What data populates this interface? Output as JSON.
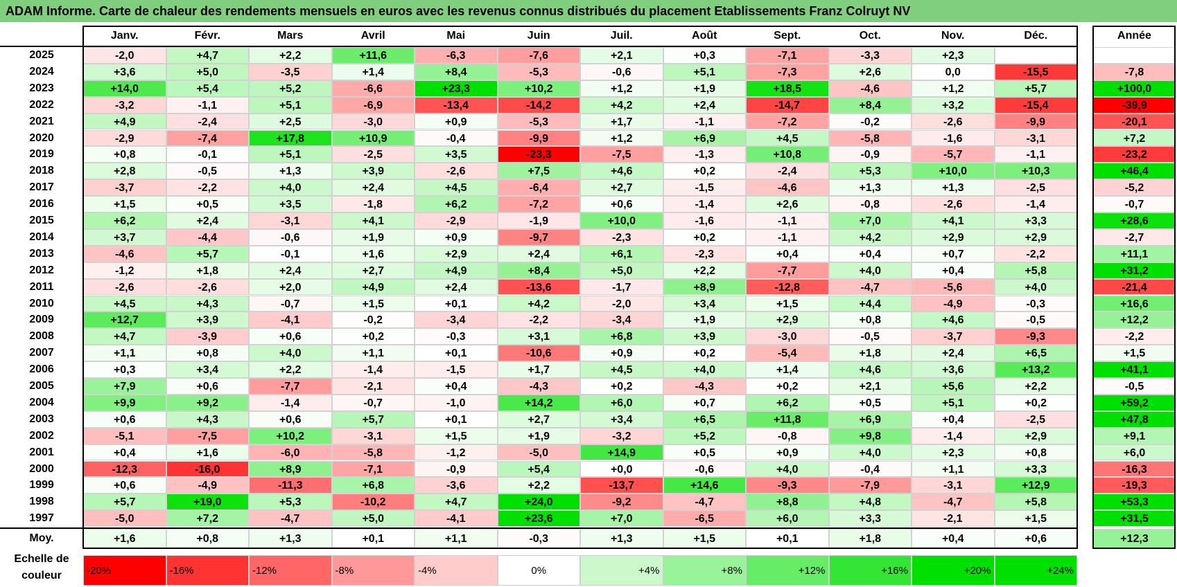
{
  "title": "ADAM Informe. Carte de chaleur des rendements mensuels en euros avec les revenus connus distribués du placement Etablissements Franz Colruyt NV",
  "colors": {
    "title_bg": "#7fcf7f",
    "neg_max": "#ff0000",
    "zero": "#ffffff",
    "pos_max": "#00e000"
  },
  "chart_data": {
    "type": "heatmap",
    "title": "ADAM Informe. Carte de chaleur des rendements mensuels en euros avec les revenus connus distribués du placement Etablissements Franz Colruyt NV",
    "columns": [
      "Janv.",
      "Févr.",
      "Mars",
      "Avril",
      "Mai",
      "Juin",
      "Juil.",
      "Août",
      "Sept.",
      "Oct.",
      "Nov.",
      "Déc."
    ],
    "year_header": "Année",
    "rows": [
      {
        "label": "2025",
        "values": [
          "-2,0",
          "+4,7",
          "+2,2",
          "+11,6",
          "-6,3",
          "-7,6",
          "+2,1",
          "+0,3",
          "-7,1",
          "-3,3",
          "+2,3",
          ""
        ],
        "year": ""
      },
      {
        "label": "2024",
        "values": [
          "+3,6",
          "+5,0",
          "-3,5",
          "+1,4",
          "+8,4",
          "-5,3",
          "-0,6",
          "+5,1",
          "-7,3",
          "+2,6",
          "0,0",
          "-15,5"
        ],
        "year": "-7,8"
      },
      {
        "label": "2023",
        "values": [
          "+14,0",
          "+5,4",
          "+5,2",
          "-6,6",
          "+23,3",
          "+10,2",
          "+1,2",
          "+1,9",
          "+18,5",
          "-4,6",
          "+1,2",
          "+5,7"
        ],
        "year": "+100,0"
      },
      {
        "label": "2022",
        "values": [
          "-3,2",
          "-1,1",
          "+5,1",
          "-6,9",
          "-13,4",
          "-14,2",
          "+4,2",
          "+2,4",
          "-14,7",
          "+8,4",
          "+3,2",
          "-15,4"
        ],
        "year": "-39,9"
      },
      {
        "label": "2021",
        "values": [
          "+4,9",
          "-2,4",
          "+2,5",
          "-3,0",
          "+0,9",
          "-5,3",
          "+1,7",
          "-1,1",
          "-7,2",
          "-0,2",
          "-2,6",
          "-9,9"
        ],
        "year": "-20,1"
      },
      {
        "label": "2020",
        "values": [
          "-2,9",
          "-7,4",
          "+17,8",
          "+10,9",
          "-0,4",
          "-9,9",
          "+1,2",
          "+6,9",
          "+4,5",
          "-5,8",
          "-1,6",
          "-3,1"
        ],
        "year": "+7,2"
      },
      {
        "label": "2019",
        "values": [
          "+0,8",
          "-0,1",
          "+5,1",
          "-2,5",
          "+3,5",
          "-23,3",
          "-7,5",
          "-1,3",
          "+10,8",
          "-0,9",
          "-5,7",
          "-1,1"
        ],
        "year": "-23,2"
      },
      {
        "label": "2018",
        "values": [
          "+2,8",
          "-0,5",
          "+1,3",
          "+3,9",
          "-2,6",
          "+7,5",
          "+4,6",
          "+0,2",
          "-2,4",
          "+5,3",
          "+10,0",
          "+10,3"
        ],
        "year": "+46,4"
      },
      {
        "label": "2017",
        "values": [
          "-3,7",
          "-2,2",
          "+4,0",
          "+2,4",
          "+4,5",
          "-6,4",
          "+2,7",
          "-1,5",
          "-4,6",
          "+1,3",
          "+1,3",
          "-2,5"
        ],
        "year": "-5,2"
      },
      {
        "label": "2016",
        "values": [
          "+1,5",
          "+0,5",
          "+3,5",
          "-1,8",
          "+6,2",
          "-7,2",
          "+0,6",
          "-1,4",
          "+2,6",
          "-0,8",
          "-2,6",
          "-1,4"
        ],
        "year": "-0,7"
      },
      {
        "label": "2015",
        "values": [
          "+6,2",
          "+2,4",
          "-3,1",
          "+4,1",
          "-2,9",
          "-1,9",
          "+10,0",
          "-1,6",
          "-1,1",
          "+7,0",
          "+4,1",
          "+3,3"
        ],
        "year": "+28,6"
      },
      {
        "label": "2014",
        "values": [
          "+3,7",
          "-4,4",
          "-0,6",
          "+1,9",
          "+0,9",
          "-9,7",
          "-2,3",
          "+0,2",
          "-1,1",
          "+4,2",
          "+2,9",
          "+2,9"
        ],
        "year": "-2,7"
      },
      {
        "label": "2013",
        "values": [
          "-4,6",
          "+5,7",
          "-0,1",
          "+1,6",
          "+2,9",
          "+2,4",
          "+6,1",
          "-2,3",
          "+0,4",
          "+0,4",
          "+0,7",
          "-2,2"
        ],
        "year": "+11,1"
      },
      {
        "label": "2012",
        "values": [
          "-1,2",
          "+1,8",
          "+2,4",
          "+2,7",
          "+4,9",
          "+8,4",
          "+5,0",
          "+2,2",
          "-7,7",
          "+4,0",
          "+0,4",
          "+5,8"
        ],
        "year": "+31,2"
      },
      {
        "label": "2011",
        "values": [
          "-2,6",
          "-2,6",
          "+2,0",
          "+4,9",
          "+2,4",
          "-13,6",
          "-1,7",
          "+8,9",
          "-12,8",
          "-4,7",
          "-5,6",
          "+4,0"
        ],
        "year": "-21,4"
      },
      {
        "label": "2010",
        "values": [
          "+4,5",
          "+4,3",
          "-0,7",
          "+1,5",
          "+0,1",
          "+4,2",
          "-2,0",
          "+3,4",
          "+1,5",
          "+4,4",
          "-4,9",
          "-0,3"
        ],
        "year": "+16,6"
      },
      {
        "label": "2009",
        "values": [
          "+12,7",
          "+3,9",
          "-4,1",
          "-0,2",
          "-3,4",
          "-2,2",
          "-3,4",
          "+1,9",
          "+2,9",
          "+0,8",
          "+4,6",
          "-0,5"
        ],
        "year": "+12,2"
      },
      {
        "label": "2008",
        "values": [
          "+4,7",
          "-3,9",
          "+0,6",
          "+0,2",
          "-0,3",
          "+3,1",
          "+6,8",
          "+3,9",
          "-3,0",
          "-0,5",
          "-3,7",
          "-9,3"
        ],
        "year": "-2,2"
      },
      {
        "label": "2007",
        "values": [
          "+1,1",
          "+0,8",
          "+4,0",
          "+1,1",
          "+0,1",
          "-10,6",
          "+0,9",
          "+0,2",
          "-5,4",
          "+1,8",
          "+2,4",
          "+6,5"
        ],
        "year": "+1,5"
      },
      {
        "label": "2006",
        "values": [
          "+0,3",
          "+3,4",
          "+2,2",
          "-1,4",
          "-1,5",
          "+1,7",
          "+4,5",
          "+4,0",
          "+1,4",
          "+4,6",
          "+3,6",
          "+13,2"
        ],
        "year": "+41,1"
      },
      {
        "label": "2005",
        "values": [
          "+7,9",
          "+0,6",
          "-7,7",
          "-2,1",
          "+0,4",
          "-4,3",
          "+0,2",
          "-4,3",
          "+0,2",
          "+2,1",
          "+5,6",
          "+2,2"
        ],
        "year": "-0,5"
      },
      {
        "label": "2004",
        "values": [
          "+9,9",
          "+9,2",
          "-1,4",
          "-0,7",
          "-1,0",
          "+14,2",
          "+6,0",
          "+0,7",
          "+6,2",
          "+0,5",
          "+5,1",
          "+0,2"
        ],
        "year": "+59,2"
      },
      {
        "label": "2003",
        "values": [
          "+0,6",
          "+4,3",
          "+0,6",
          "+5,7",
          "+0,1",
          "+2,7",
          "+3,4",
          "+6,5",
          "+11,8",
          "+6,9",
          "+0,4",
          "-2,5"
        ],
        "year": "+47,8"
      },
      {
        "label": "2002",
        "values": [
          "-5,1",
          "-7,5",
          "+10,2",
          "-3,1",
          "+1,5",
          "+1,9",
          "-3,2",
          "+5,2",
          "-0,8",
          "+9,8",
          "-1,4",
          "+2,9"
        ],
        "year": "+9,1"
      },
      {
        "label": "2001",
        "values": [
          "+0,4",
          "+1,6",
          "-6,0",
          "-5,8",
          "-1,2",
          "-5,0",
          "+14,9",
          "+0,5",
          "+0,9",
          "+4,0",
          "+2,3",
          "+0,8"
        ],
        "year": "+6,0"
      },
      {
        "label": "2000",
        "values": [
          "-12,3",
          "-16,0",
          "+8,9",
          "-7,1",
          "-0,9",
          "+5,4",
          "+0,0",
          "-0,6",
          "+4,0",
          "-0,4",
          "+1,1",
          "+3,3"
        ],
        "year": "-16,3"
      },
      {
        "label": "1999",
        "values": [
          "+0,6",
          "-4,9",
          "-11,3",
          "+6,8",
          "-3,6",
          "+2,2",
          "-13,7",
          "+14,6",
          "-9,3",
          "-7,9",
          "-3,1",
          "+12,9"
        ],
        "year": "-19,3"
      },
      {
        "label": "1998",
        "values": [
          "+5,7",
          "+19,0",
          "+5,3",
          "-10,2",
          "+4,7",
          "+24,0",
          "-9,2",
          "-4,7",
          "+8,8",
          "+4,8",
          "-4,7",
          "+5,8"
        ],
        "year": "+53,3"
      },
      {
        "label": "1997",
        "values": [
          "-5,0",
          "+7,2",
          "-4,7",
          "+5,0",
          "-4,1",
          "+23,6",
          "+7,0",
          "-6,5",
          "+6,0",
          "+3,3",
          "-2,1",
          "+1,5"
        ],
        "year": "+31,5"
      }
    ],
    "average_row": {
      "label": "Moy.",
      "values": [
        "+1,6",
        "+0,8",
        "+1,3",
        "+0,1",
        "+1,1",
        "-0,3",
        "+1,3",
        "+1,5",
        "+0,1",
        "+1,8",
        "+0,4",
        "+0,6"
      ],
      "year": "+12,3"
    },
    "color_scale": {
      "label_line1": "Echelle de",
      "label_line2": "couleur",
      "steps": [
        "-20%",
        "-16%",
        "-12%",
        "-8%",
        "-4%",
        "0%",
        "+4%",
        "+8%",
        "+12%",
        "+16%",
        "+20%",
        "+24%"
      ]
    }
  }
}
